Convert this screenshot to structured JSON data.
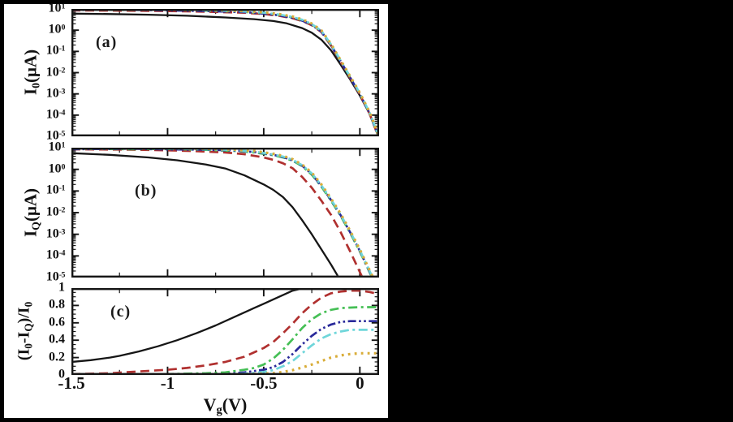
{
  "figure": {
    "background": "#000000",
    "panel_bg": "#ffffff",
    "frame_color": "#151515",
    "x_axis": {
      "label_tokens": [
        {
          "t": "V"
        },
        {
          "s": "g"
        },
        {
          "t": "(V)"
        }
      ],
      "tick_labels": [
        "-1.5",
        "-1",
        "-0.5",
        "0"
      ],
      "tick_values": [
        -1.5,
        -1,
        -0.5,
        0
      ],
      "minor_step": 0.25,
      "range": [
        -1.5,
        0.1
      ]
    }
  },
  "chart_data": [
    {
      "id": "a",
      "type": "line",
      "panel_label": "(a)",
      "ylabel_tokens": [
        {
          "t": "I"
        },
        {
          "s": "0"
        },
        {
          "t": "(μA)"
        }
      ],
      "yscale": "log",
      "ylog_range": [
        -5,
        1
      ],
      "ytick_values": [
        1,
        0,
        -1,
        -2,
        -3,
        -4,
        -5
      ],
      "ytick_labels": [
        "10^1",
        "10^0",
        "10^-1",
        "10^-2",
        "10^-3",
        "10^-4",
        "10^-5"
      ],
      "series": [
        {
          "name": "black-solid",
          "color": "#161616",
          "style": "solid",
          "width": 2.3,
          "x": [
            -1.5,
            -1.3,
            -1.1,
            -0.9,
            -0.7,
            -0.55,
            -0.45,
            -0.38,
            -0.3,
            -0.25,
            -0.2,
            -0.15,
            -0.1,
            -0.05,
            0,
            0.05,
            0.09,
            0.1
          ],
          "y": [
            0.78,
            0.76,
            0.73,
            0.68,
            0.6,
            0.52,
            0.43,
            0.32,
            0.1,
            -0.12,
            -0.45,
            -0.95,
            -1.62,
            -2.33,
            -3.08,
            -3.93,
            -4.86,
            -5.11
          ]
        },
        {
          "name": "red-dashed",
          "color": "#b0302f",
          "style": "dashed",
          "width": 2.7,
          "x": [
            -1.5,
            -1.25,
            -1.0,
            -0.8,
            -0.6,
            -0.5,
            -0.42,
            -0.35,
            -0.3,
            -0.25,
            -0.2,
            -0.15,
            -0.1,
            -0.05,
            0,
            0.05,
            0.09,
            0.1
          ],
          "y": [
            0.93,
            0.92,
            0.9,
            0.87,
            0.82,
            0.76,
            0.68,
            0.56,
            0.43,
            0.23,
            -0.09,
            -0.73,
            -1.49,
            -2.26,
            -3.03,
            -3.93,
            -4.86,
            -5.11
          ]
        },
        {
          "name": "green-dash-dot",
          "color": "#45bf55",
          "style": "dashdot",
          "width": 2.7,
          "x": [
            -1.5,
            -1.25,
            -1.0,
            -0.8,
            -0.6,
            -0.5,
            -0.42,
            -0.35,
            -0.3,
            -0.25,
            -0.2,
            -0.15,
            -0.1,
            -0.05,
            0,
            0.05,
            0.09,
            0.1
          ],
          "y": [
            0.97,
            0.95,
            0.96,
            0.92,
            0.86,
            0.8,
            0.72,
            0.6,
            0.47,
            0.27,
            -0.05,
            -0.69,
            -1.45,
            -2.22,
            -2.99,
            -3.89,
            -4.82,
            -5.07
          ]
        },
        {
          "name": "navy-dash-dot-dot",
          "color": "#2a2a9a",
          "style": "dashdotdot",
          "width": 2.7,
          "x": [
            -1.5,
            -1.25,
            -1.0,
            -0.8,
            -0.6,
            -0.5,
            -0.42,
            -0.35,
            -0.3,
            -0.25,
            -0.2,
            -0.15,
            -0.1,
            -0.05,
            0,
            0.05,
            0.09,
            0.1
          ],
          "y": [
            0.95,
            0.96,
            0.93,
            0.9,
            0.85,
            0.78,
            0.7,
            0.58,
            0.45,
            0.25,
            -0.07,
            -0.71,
            -1.47,
            -2.24,
            -3.01,
            -3.91,
            -4.84,
            -5.09
          ]
        },
        {
          "name": "cyan-dash-dot",
          "color": "#6fd6da",
          "style": "dashdot",
          "width": 2.7,
          "x": [
            -1.5,
            -1.25,
            -1.0,
            -0.8,
            -0.6,
            -0.5,
            -0.42,
            -0.35,
            -0.3,
            -0.25,
            -0.2,
            -0.15,
            -0.1,
            -0.05,
            0,
            0.05,
            0.09,
            0.1
          ],
          "y": [
            0.99,
            0.97,
            0.98,
            0.94,
            0.88,
            0.82,
            0.74,
            0.62,
            0.49,
            0.29,
            -0.03,
            -0.67,
            -1.43,
            -2.2,
            -2.97,
            -3.87,
            -4.8,
            -5.05
          ]
        },
        {
          "name": "gold-dotted",
          "color": "#d9ad39",
          "style": "dotted",
          "width": 3.2,
          "x": [
            -1.5,
            -1.25,
            -1.0,
            -0.8,
            -0.6,
            -0.5,
            -0.42,
            -0.35,
            -0.3,
            -0.25,
            -0.2,
            -0.15,
            -0.1,
            -0.05,
            0,
            0.05,
            0.09,
            0.1
          ],
          "y": [
            1.0,
            0.99,
            1.0,
            0.96,
            0.9,
            0.84,
            0.76,
            0.64,
            0.51,
            0.31,
            -0.01,
            -0.65,
            -1.41,
            -2.18,
            -2.95,
            -3.85,
            -4.78,
            -5.03
          ]
        }
      ]
    },
    {
      "id": "b",
      "type": "line",
      "panel_label": "(b)",
      "ylabel_tokens": [
        {
          "t": "I"
        },
        {
          "s": "Q"
        },
        {
          "t": "(μA)"
        }
      ],
      "yscale": "log",
      "ylog_range": [
        -5,
        1
      ],
      "ytick_values": [
        1,
        0,
        -1,
        -2,
        -3,
        -4,
        -5
      ],
      "ytick_labels": [
        "10^1",
        "10^0",
        "10^-1",
        "10^-2",
        "10^-3",
        "10^-4",
        "10^-5"
      ],
      "series": [
        {
          "name": "black-solid",
          "color": "#161616",
          "style": "solid",
          "width": 2.3,
          "x": [
            -1.5,
            -1.3,
            -1.1,
            -0.95,
            -0.8,
            -0.7,
            -0.6,
            -0.5,
            -0.45,
            -0.4,
            -0.35,
            -0.3,
            -0.25,
            -0.2,
            -0.15,
            -0.12,
            -0.09
          ],
          "y": [
            0.75,
            0.67,
            0.55,
            0.42,
            0.22,
            0.04,
            -0.28,
            -0.7,
            -0.95,
            -1.28,
            -1.75,
            -2.35,
            -3.0,
            -3.7,
            -4.4,
            -4.85,
            -5.3
          ]
        },
        {
          "name": "red-dashed",
          "color": "#b0302f",
          "style": "dashed",
          "width": 2.7,
          "x": [
            -1.5,
            -1.2,
            -1.0,
            -0.85,
            -0.7,
            -0.6,
            -0.5,
            -0.45,
            -0.4,
            -0.35,
            -0.3,
            -0.25,
            -0.2,
            -0.15,
            -0.1,
            -0.05,
            0,
            0.03
          ],
          "y": [
            0.93,
            0.91,
            0.88,
            0.84,
            0.78,
            0.7,
            0.55,
            0.44,
            0.28,
            0.05,
            -0.35,
            -0.85,
            -1.45,
            -2.1,
            -2.9,
            -3.8,
            -4.75,
            -5.3
          ]
        },
        {
          "name": "green-dash-dot",
          "color": "#45bf55",
          "style": "dashdot",
          "width": 2.7,
          "x": [
            -1.5,
            -1.2,
            -1.0,
            -0.8,
            -0.65,
            -0.55,
            -0.45,
            -0.4,
            -0.35,
            -0.3,
            -0.25,
            -0.2,
            -0.15,
            -0.1,
            -0.05,
            0,
            0.05,
            0.08
          ],
          "y": [
            0.95,
            0.93,
            0.94,
            0.9,
            0.85,
            0.78,
            0.65,
            0.55,
            0.4,
            0.15,
            -0.25,
            -0.8,
            -1.45,
            -2.15,
            -2.95,
            -3.8,
            -4.75,
            -5.3
          ]
        },
        {
          "name": "navy-dash-dot-dot",
          "color": "#2a2a9a",
          "style": "dashdotdot",
          "width": 2.7,
          "x": [
            -1.5,
            -1.2,
            -1.0,
            -0.8,
            -0.65,
            -0.55,
            -0.45,
            -0.4,
            -0.35,
            -0.3,
            -0.25,
            -0.2,
            -0.15,
            -0.1,
            -0.05,
            0,
            0.05,
            0.08
          ],
          "y": [
            0.93,
            0.95,
            0.92,
            0.91,
            0.87,
            0.8,
            0.67,
            0.57,
            0.42,
            0.17,
            -0.22,
            -0.77,
            -1.42,
            -2.12,
            -2.92,
            -3.77,
            -4.72,
            -5.27
          ]
        },
        {
          "name": "cyan-dash-dot",
          "color": "#6fd6da",
          "style": "dashdot",
          "width": 2.7,
          "x": [
            -1.5,
            -1.2,
            -1.0,
            -0.8,
            -0.65,
            -0.55,
            -0.45,
            -0.4,
            -0.35,
            -0.3,
            -0.25,
            -0.2,
            -0.15,
            -0.1,
            -0.05,
            0,
            0.05,
            0.08
          ],
          "y": [
            0.97,
            0.96,
            0.95,
            0.93,
            0.89,
            0.82,
            0.69,
            0.59,
            0.44,
            0.19,
            -0.19,
            -0.74,
            -1.39,
            -2.09,
            -2.89,
            -3.74,
            -4.69,
            -5.24
          ]
        },
        {
          "name": "gold-dotted",
          "color": "#d9ad39",
          "style": "dotted",
          "width": 3.2,
          "x": [
            -1.5,
            -1.2,
            -1.0,
            -0.8,
            -0.65,
            -0.55,
            -0.45,
            -0.4,
            -0.35,
            -0.3,
            -0.25,
            -0.2,
            -0.15,
            -0.1,
            -0.05,
            0,
            0.05,
            0.08
          ],
          "y": [
            0.99,
            0.98,
            0.97,
            0.95,
            0.91,
            0.85,
            0.72,
            0.62,
            0.47,
            0.22,
            -0.15,
            -0.7,
            -1.35,
            -2.05,
            -2.85,
            -3.7,
            -4.65,
            -5.2
          ]
        }
      ]
    },
    {
      "id": "c",
      "type": "line",
      "panel_label": "(c)",
      "ylabel_tokens": [
        {
          "t": "(I"
        },
        {
          "s": "0"
        },
        {
          "t": "-I"
        },
        {
          "s": "Q"
        },
        {
          "t": ")/I"
        },
        {
          "s": "0"
        }
      ],
      "yscale": "linear",
      "ylim": [
        0,
        1
      ],
      "y_minor_step": 0.05,
      "ytick_values": [
        1,
        0.8,
        0.6,
        0.4,
        0.2,
        0
      ],
      "ytick_labels": [
        "1",
        "0.8",
        "0.6",
        "0.4",
        "0.2",
        "0"
      ],
      "series": [
        {
          "name": "black-solid",
          "color": "#161616",
          "style": "solid",
          "width": 2.3,
          "x": [
            -1.5,
            -1.4,
            -1.3,
            -1.25,
            -1.15,
            -1.05,
            -0.95,
            -0.85,
            -0.75,
            -0.65,
            -0.55,
            -0.5,
            -0.45,
            -0.4,
            -0.35,
            -0.3,
            -0.2,
            0,
            0.1
          ],
          "y": [
            0.15,
            0.17,
            0.2,
            0.22,
            0.27,
            0.33,
            0.4,
            0.48,
            0.57,
            0.67,
            0.77,
            0.82,
            0.87,
            0.92,
            0.97,
            0.995,
            0.995,
            0.995,
            0.995
          ]
        },
        {
          "name": "red-dashed",
          "color": "#b0302f",
          "style": "dashed",
          "width": 2.7,
          "x": [
            -1.5,
            -1.3,
            -1.15,
            -1.0,
            -0.9,
            -0.8,
            -0.7,
            -0.6,
            -0.5,
            -0.45,
            -0.4,
            -0.35,
            -0.3,
            -0.25,
            -0.2,
            -0.15,
            -0.1,
            -0.05,
            0,
            0.05,
            0.1
          ],
          "y": [
            0.01,
            0.02,
            0.04,
            0.06,
            0.08,
            0.11,
            0.15,
            0.21,
            0.31,
            0.38,
            0.48,
            0.59,
            0.71,
            0.81,
            0.89,
            0.94,
            0.96,
            0.97,
            0.97,
            0.955,
            0.93
          ]
        },
        {
          "name": "green-dash-dot",
          "color": "#45bf55",
          "style": "dashdot",
          "width": 2.7,
          "x": [
            -1.5,
            -1.0,
            -0.8,
            -0.7,
            -0.6,
            -0.55,
            -0.5,
            -0.45,
            -0.4,
            -0.35,
            -0.3,
            -0.25,
            -0.2,
            -0.15,
            -0.1,
            0,
            0.1
          ],
          "y": [
            0.0,
            0.01,
            0.02,
            0.03,
            0.06,
            0.08,
            0.12,
            0.19,
            0.29,
            0.41,
            0.54,
            0.64,
            0.71,
            0.75,
            0.77,
            0.78,
            0.78
          ]
        },
        {
          "name": "navy-dash-dot-dot",
          "color": "#2a2a9a",
          "style": "dashdotdot",
          "width": 2.7,
          "x": [
            -1.5,
            -0.9,
            -0.7,
            -0.6,
            -0.5,
            -0.45,
            -0.4,
            -0.35,
            -0.3,
            -0.25,
            -0.2,
            -0.15,
            -0.1,
            -0.05,
            0,
            0.1
          ],
          "y": [
            0.0,
            0.005,
            0.01,
            0.03,
            0.06,
            0.09,
            0.15,
            0.24,
            0.35,
            0.45,
            0.53,
            0.58,
            0.61,
            0.62,
            0.62,
            0.62
          ]
        },
        {
          "name": "cyan-dash-dot",
          "color": "#6fd6da",
          "style": "dashdot",
          "width": 2.7,
          "x": [
            -1.5,
            -0.8,
            -0.6,
            -0.5,
            -0.45,
            -0.4,
            -0.35,
            -0.3,
            -0.25,
            -0.2,
            -0.15,
            -0.1,
            -0.05,
            0,
            0.1
          ],
          "y": [
            0.0,
            0.005,
            0.015,
            0.035,
            0.055,
            0.1,
            0.16,
            0.25,
            0.34,
            0.42,
            0.47,
            0.5,
            0.52,
            0.52,
            0.52
          ]
        },
        {
          "name": "gold-dotted",
          "color": "#d9ad39",
          "style": "dotted",
          "width": 3.2,
          "x": [
            -1.5,
            -0.7,
            -0.55,
            -0.45,
            -0.4,
            -0.35,
            -0.3,
            -0.25,
            -0.2,
            -0.15,
            -0.1,
            -0.05,
            0,
            0.1
          ],
          "y": [
            0.0,
            0.005,
            0.01,
            0.02,
            0.035,
            0.055,
            0.085,
            0.12,
            0.16,
            0.2,
            0.225,
            0.24,
            0.25,
            0.25
          ]
        }
      ]
    }
  ]
}
